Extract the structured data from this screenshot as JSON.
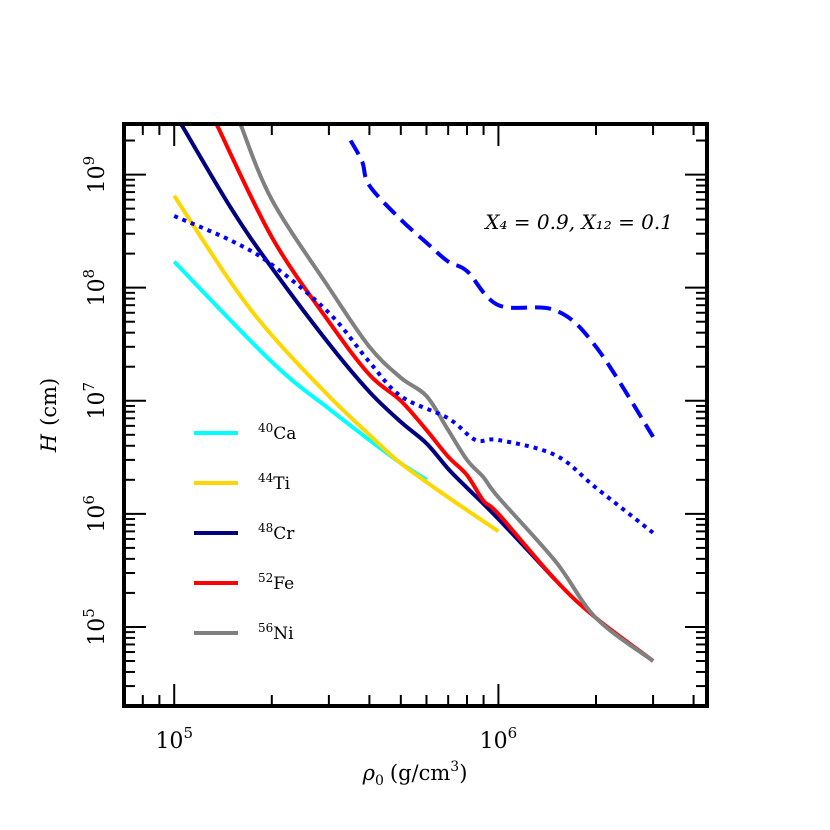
{
  "chart_data": {
    "type": "line",
    "title": "",
    "xlabel": {
      "symbol": "ρ",
      "sub": "0",
      "unit": "(g/cm",
      "unit_exp": "3",
      "unit_close": ")"
    },
    "ylabel": {
      "symbol": "H",
      "unit": "(cm)"
    },
    "x_scale": "log",
    "y_scale": "log",
    "xlim": [
      70000,
      4400000
    ],
    "ylim": [
      20000,
      2800000000
    ],
    "x_ticks": [
      {
        "value": 100000,
        "base": "10",
        "exp": "5"
      },
      {
        "value": 1000000,
        "base": "10",
        "exp": "6"
      }
    ],
    "y_ticks": [
      {
        "value": 100000,
        "base": "10",
        "exp": "5"
      },
      {
        "value": 1000000,
        "base": "10",
        "exp": "6"
      },
      {
        "value": 10000000,
        "base": "10",
        "exp": "7"
      },
      {
        "value": 100000000,
        "base": "10",
        "exp": "8"
      },
      {
        "value": 1000000000,
        "base": "10",
        "exp": "9"
      }
    ],
    "annotation": "X₄ = 0.9, X₁₂ = 0.1",
    "legend_position": "lower-left",
    "series": [
      {
        "name": "Ca",
        "mass": "40",
        "color": "#00ffff",
        "style": "solid",
        "x": [
          100000,
          200000,
          300000,
          400000,
          500000,
          600000
        ],
        "y": [
          170000000,
          22000000,
          8500000,
          4500000,
          2800000,
          2000000
        ]
      },
      {
        "name": "Ti",
        "mass": "44",
        "color": "#ffd700",
        "style": "solid",
        "x": [
          100000,
          150000,
          200000,
          300000,
          400000,
          500000,
          700000,
          1000000
        ],
        "y": [
          650000000,
          110000000,
          38000000,
          11000000,
          5000000,
          2800000,
          1400000,
          700000
        ]
      },
      {
        "name": "Cr",
        "mass": "48",
        "color": "#000080",
        "style": "solid",
        "x": [
          105000,
          150000,
          200000,
          300000,
          400000,
          500000,
          600000,
          700000,
          800000,
          1000000,
          1500000
        ],
        "y": [
          2800000000,
          500000000,
          150000000,
          32000000,
          12000000,
          6500000,
          4200000,
          2500000,
          1700000,
          900000,
          260000
        ]
      },
      {
        "name": "Fe",
        "mass": "52",
        "color": "#ff0000",
        "style": "solid",
        "x": [
          135000,
          200000,
          300000,
          400000,
          500000,
          600000,
          700000,
          800000,
          900000,
          1000000,
          1500000,
          2000000,
          3000000
        ],
        "y": [
          2800000000,
          280000000,
          50000000,
          17000000,
          10000000,
          5500000,
          3200000,
          2200000,
          1300000,
          1000000,
          260000,
          120000,
          50000
        ]
      },
      {
        "name": "Ni",
        "mass": "56",
        "color": "#808080",
        "style": "solid",
        "x": [
          160000,
          200000,
          300000,
          400000,
          500000,
          600000,
          700000,
          800000,
          900000,
          1000000,
          1500000,
          2000000,
          3000000
        ],
        "y": [
          2800000000,
          600000000,
          100000000,
          30000000,
          16000000,
          11000000,
          5500000,
          3000000,
          2100000,
          1400000,
          380000,
          120000,
          50000
        ]
      },
      {
        "name": "",
        "mass": "",
        "color": "#0000ff",
        "style": "dotted",
        "legend": false,
        "x": [
          100000,
          150000,
          200000,
          300000,
          400000,
          500000,
          700000,
          850000,
          1000000,
          1500000,
          2000000,
          3000000
        ],
        "y": [
          430000000,
          260000000,
          160000000,
          60000000,
          22000000,
          11000000,
          7000000,
          4500000,
          4500000,
          3300000,
          1700000,
          680000
        ]
      },
      {
        "name": "",
        "mass": "",
        "color": "#0000ff",
        "style": "dashed",
        "legend": false,
        "x": [
          350000,
          380000,
          400000,
          500000,
          600000,
          700000,
          800000,
          1000000,
          1500000,
          2000000,
          3000000
        ],
        "y": [
          2000000000,
          1300000000,
          800000000,
          400000000,
          250000000,
          170000000,
          140000000,
          70000000,
          63000000,
          30000000,
          4800000
        ]
      }
    ]
  }
}
